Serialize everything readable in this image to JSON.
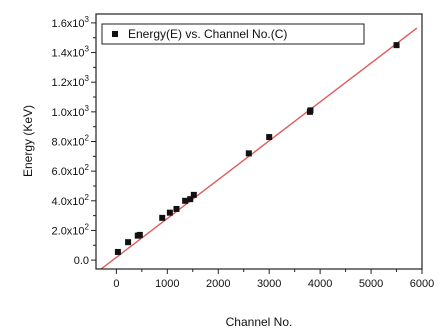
{
  "chart_data": {
    "type": "scatter",
    "title": "",
    "xlabel": "Channel No.",
    "ylabel": "Energy (KeV)",
    "xlim": [
      -400,
      6000
    ],
    "ylim": [
      -60,
      1660
    ],
    "grid": false,
    "legend_position": "top-left",
    "x_ticks": [
      0,
      1000,
      2000,
      3000,
      4000,
      5000,
      6000
    ],
    "x_tick_labels": [
      "0",
      "1000",
      "2000",
      "3000",
      "4000",
      "5000",
      "6000"
    ],
    "y_ticks": [
      0,
      200,
      400,
      600,
      800,
      1000,
      1200,
      1400,
      1600
    ],
    "y_tick_labels": [
      {
        "mantissa": "0.0",
        "exp": ""
      },
      {
        "mantissa": "2.0x10",
        "exp": "2"
      },
      {
        "mantissa": "4.0x10",
        "exp": "2"
      },
      {
        "mantissa": "6.0x10",
        "exp": "2"
      },
      {
        "mantissa": "8.0x10",
        "exp": "2"
      },
      {
        "mantissa": "1.0x10",
        "exp": "3"
      },
      {
        "mantissa": "1.2x10",
        "exp": "3"
      },
      {
        "mantissa": "1.4x10",
        "exp": "3"
      },
      {
        "mantissa": "1.6x10",
        "exp": "3"
      }
    ],
    "series": [
      {
        "name": "Energy(E) vs. Channel No.(C)",
        "marker": "square",
        "color": "#111111",
        "points": [
          {
            "x": 30,
            "y": 55
          },
          {
            "x": 230,
            "y": 121
          },
          {
            "x": 420,
            "y": 165
          },
          {
            "x": 460,
            "y": 170
          },
          {
            "x": 900,
            "y": 285
          },
          {
            "x": 1050,
            "y": 320
          },
          {
            "x": 1180,
            "y": 345
          },
          {
            "x": 1350,
            "y": 400
          },
          {
            "x": 1450,
            "y": 411
          },
          {
            "x": 1520,
            "y": 440
          },
          {
            "x": 2600,
            "y": 720
          },
          {
            "x": 3000,
            "y": 830
          },
          {
            "x": 3800,
            "y": 1000
          },
          {
            "x": 3810,
            "y": 1010
          },
          {
            "x": 5500,
            "y": 1450
          }
        ]
      }
    ],
    "fit_line": {
      "color": "#e05a5a",
      "x": [
        -300,
        5900
      ],
      "y": [
        -60,
        1565
      ]
    }
  }
}
